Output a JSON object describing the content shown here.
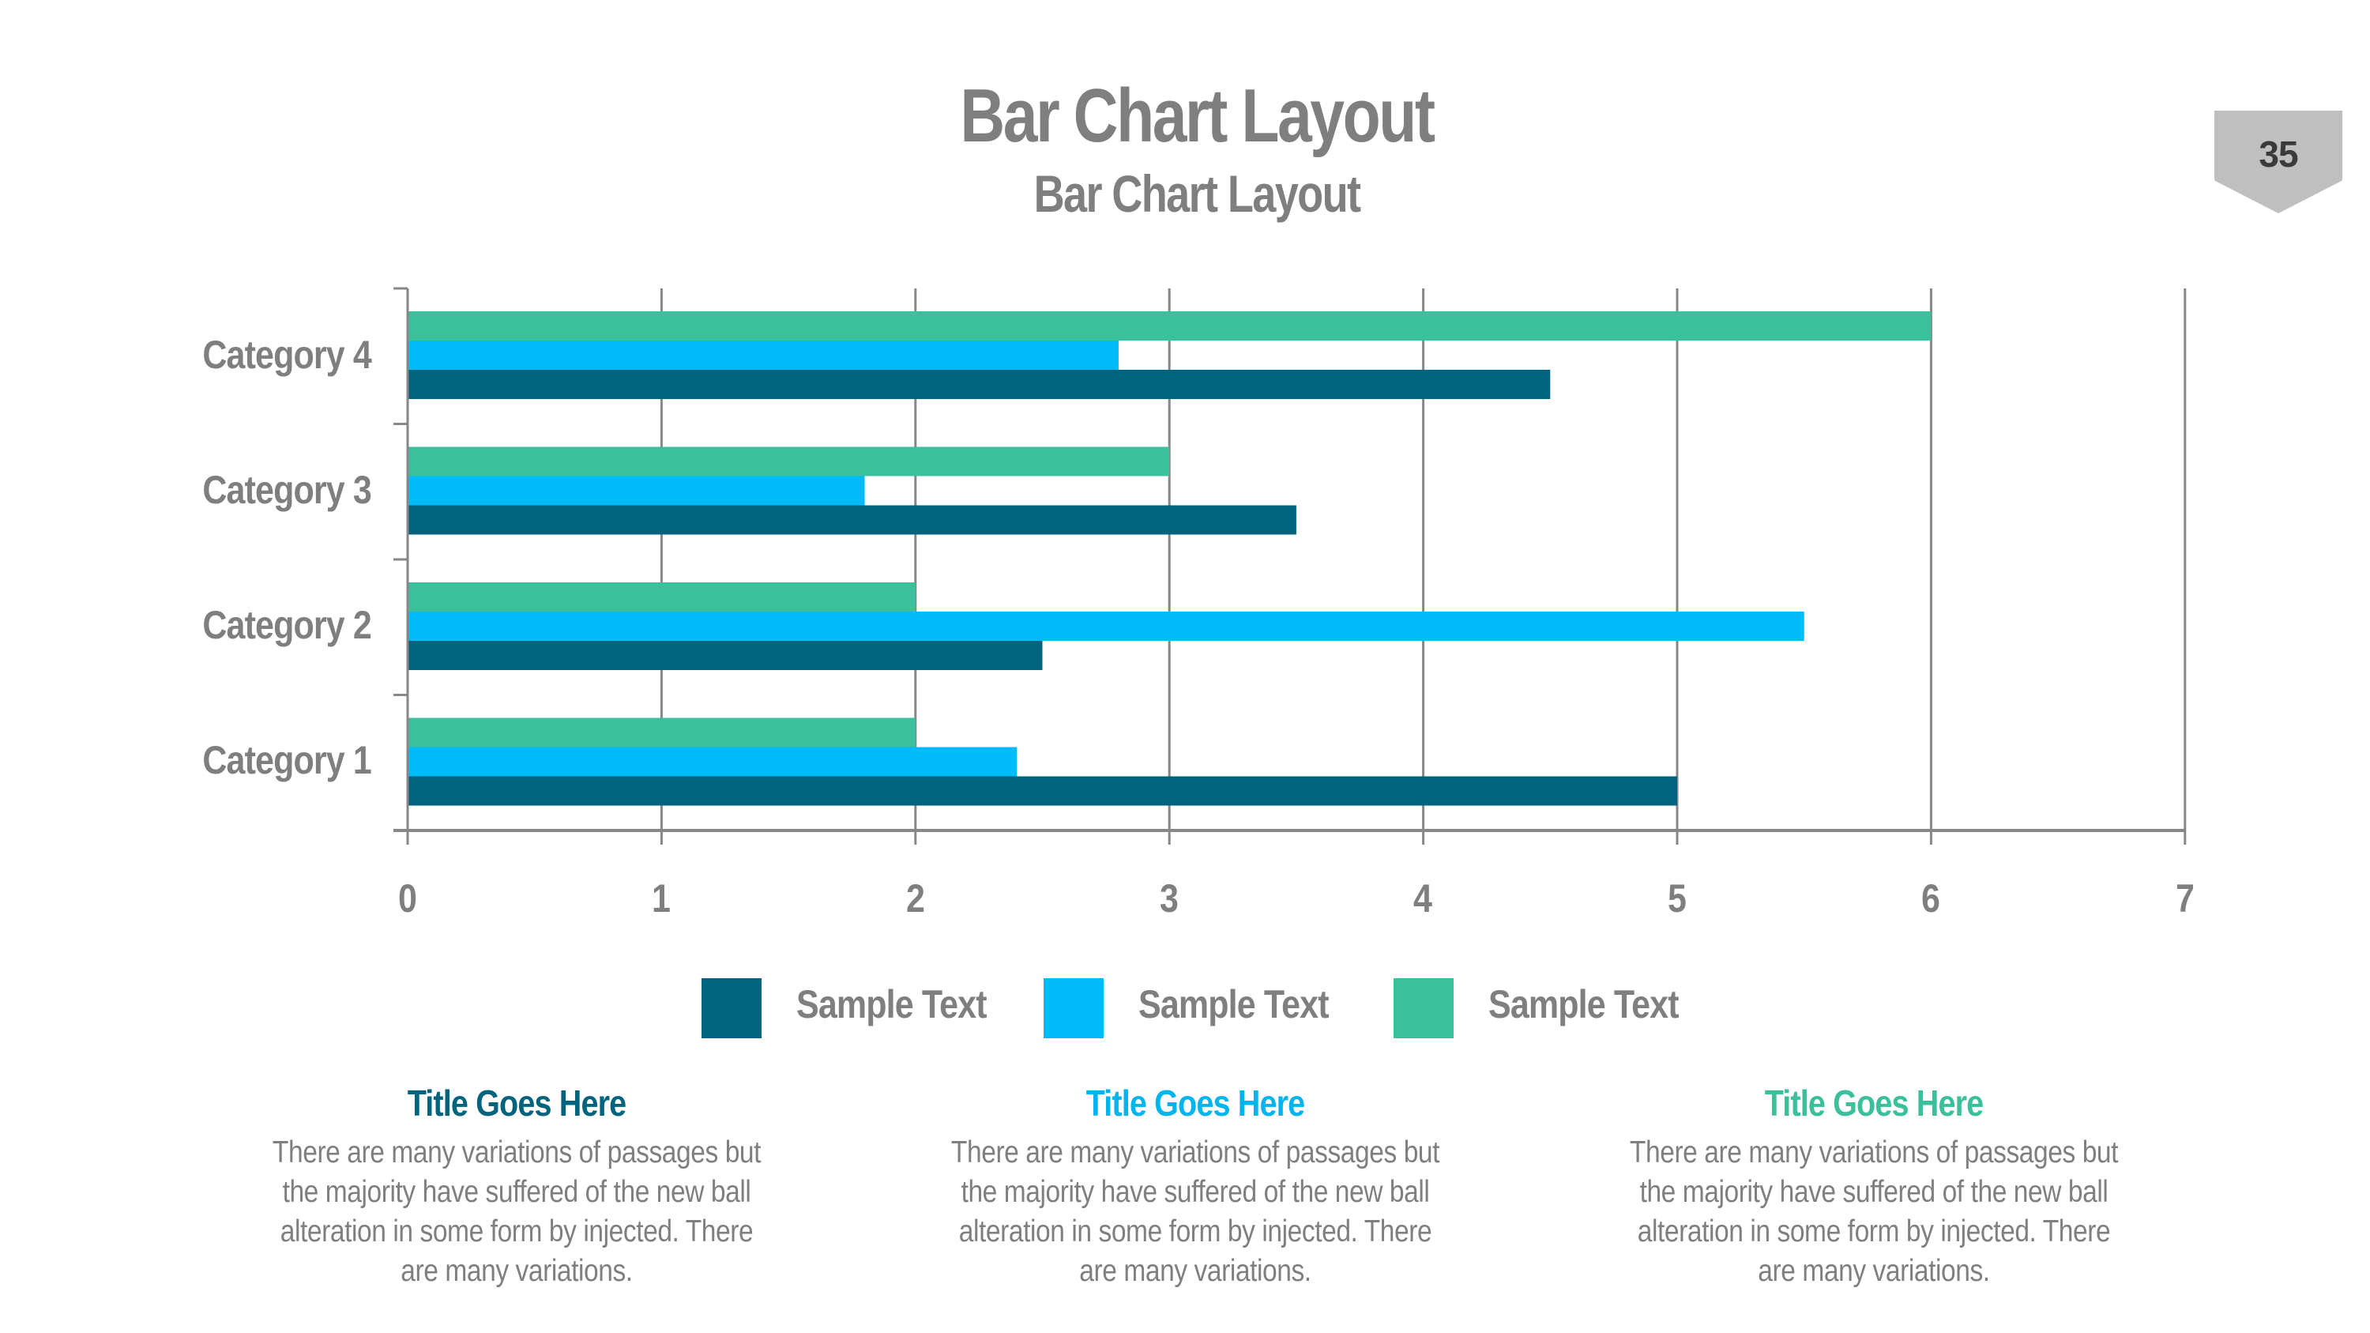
{
  "header": {
    "title": "Bar Chart Layout",
    "subtitle": "Bar Chart Layout",
    "page_number": "35"
  },
  "colors": {
    "series_1": "#02637f",
    "series_2": "#00bbf9",
    "series_3": "#3cbf9b",
    "axis": "#878787",
    "text_gray": "#7f7f7f",
    "badge": "#bfbfbf"
  },
  "chart_data": {
    "type": "bar",
    "orientation": "horizontal",
    "title": "",
    "xlabel": "",
    "ylabel": "",
    "categories": [
      "Category 1",
      "Category 2",
      "Category 3",
      "Category 4"
    ],
    "series": [
      {
        "name": "Sample Text",
        "color": "#02637f",
        "values": [
          5,
          2.5,
          3.5,
          4.5
        ]
      },
      {
        "name": "Sample Text",
        "color": "#00bbf9",
        "values": [
          2.4,
          5.5,
          1.8,
          2.8
        ]
      },
      {
        "name": "Sample Text",
        "color": "#3cbf9b",
        "values": [
          2,
          2,
          3,
          6
        ]
      }
    ],
    "xlim": [
      0,
      7
    ],
    "x_ticks": [
      "0",
      "1",
      "2",
      "3",
      "4",
      "5",
      "6",
      "7"
    ],
    "grid": "vertical",
    "legend_position": "bottom"
  },
  "legend": {
    "items": [
      {
        "label": "Sample Text",
        "color": "#02637f"
      },
      {
        "label": "Sample Text",
        "color": "#00bbf9"
      },
      {
        "label": "Sample Text",
        "color": "#3cbf9b"
      }
    ]
  },
  "columns": [
    {
      "title": "Title Goes Here",
      "color": "#02637f",
      "body": "There are many variations of passages but the majority have  suffered of the new ball alteration in some form by injected. There are many variations."
    },
    {
      "title": "Title Goes Here",
      "color": "#00b4ee",
      "body": "There are many variations of passages but the majority have  suffered of the new ball alteration in some form by injected. There are many variations."
    },
    {
      "title": "Title Goes Here",
      "color": "#3cbf9b",
      "body": "There are many variations of passages but the majority have  suffered of the new ball alteration in some form by injected. There are many variations."
    }
  ]
}
